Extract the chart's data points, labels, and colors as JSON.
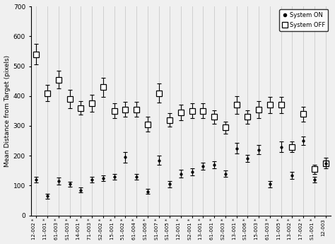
{
  "categories": [
    "12-002 *",
    "11-001 *",
    "61-003 *",
    "S1-003 *",
    "14-001 *",
    "71-003 *",
    "S2-002 *",
    "15-001 *",
    "51-002 *",
    "61-004 *",
    "S1-006 *",
    "S1-007 *",
    "S1-005 *",
    "12-001 *",
    "S2-001 *",
    "13-001 *",
    "61-001 *",
    "S2-003 *",
    "13-001 *",
    "S1-006 *",
    "15-003 *",
    "61-003 *",
    "11-005 *",
    "13-002 *",
    "17-002 *",
    "S1-001 *",
    "12-003"
  ],
  "sys_on_mean": [
    120,
    65,
    115,
    105,
    85,
    120,
    125,
    130,
    195,
    130,
    80,
    185,
    105,
    140,
    145,
    165,
    170,
    140,
    225,
    190,
    220,
    105,
    230,
    135,
    250,
    120,
    175
  ],
  "sys_on_err": [
    10,
    8,
    12,
    8,
    8,
    10,
    10,
    10,
    18,
    10,
    8,
    15,
    10,
    12,
    12,
    12,
    12,
    10,
    18,
    12,
    15,
    10,
    18,
    12,
    15,
    10,
    10
  ],
  "sys_off_mean": [
    540,
    410,
    455,
    390,
    360,
    375,
    430,
    350,
    355,
    355,
    305,
    410,
    320,
    345,
    350,
    350,
    330,
    295,
    370,
    330,
    355,
    370,
    370,
    230,
    340,
    155,
    175
  ],
  "sys_off_err": [
    35,
    28,
    30,
    30,
    22,
    28,
    32,
    25,
    25,
    25,
    25,
    32,
    22,
    25,
    25,
    25,
    22,
    20,
    30,
    22,
    28,
    28,
    28,
    18,
    25,
    15,
    18
  ],
  "ylim": [
    0,
    700
  ],
  "yticks": [
    0,
    100,
    200,
    300,
    400,
    500,
    600,
    700
  ],
  "ylabel": "Mean Distance from Target (pixels)",
  "plot_bg": "#f0f0f0",
  "fig_bg": "#f0f0f0",
  "grid_color": "#d0d0d0",
  "on_color": "#000000",
  "off_color": "#000000"
}
